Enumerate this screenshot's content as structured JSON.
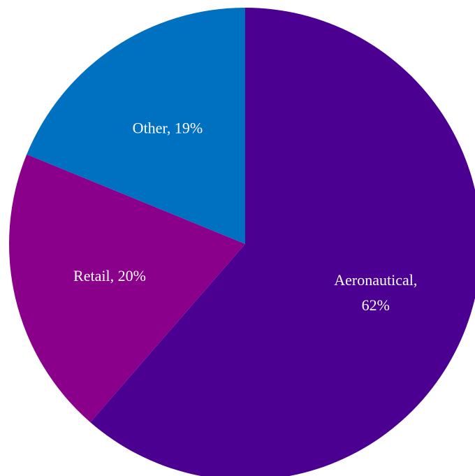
{
  "chart_data": {
    "type": "pie",
    "start_angle_deg": 0,
    "direction": "clockwise",
    "slices": [
      {
        "label": "Aeronautical",
        "value": 62,
        "display_lines": [
          "Aeronautical,",
          "62%"
        ],
        "color": "#4B0092"
      },
      {
        "label": "Retail",
        "value": 20,
        "display_lines": [
          "Retail, 20%"
        ],
        "color": "#8B008B"
      },
      {
        "label": "Other",
        "value": 19,
        "display_lines": [
          "Other, 19%"
        ],
        "color": "#0070C0"
      }
    ]
  }
}
